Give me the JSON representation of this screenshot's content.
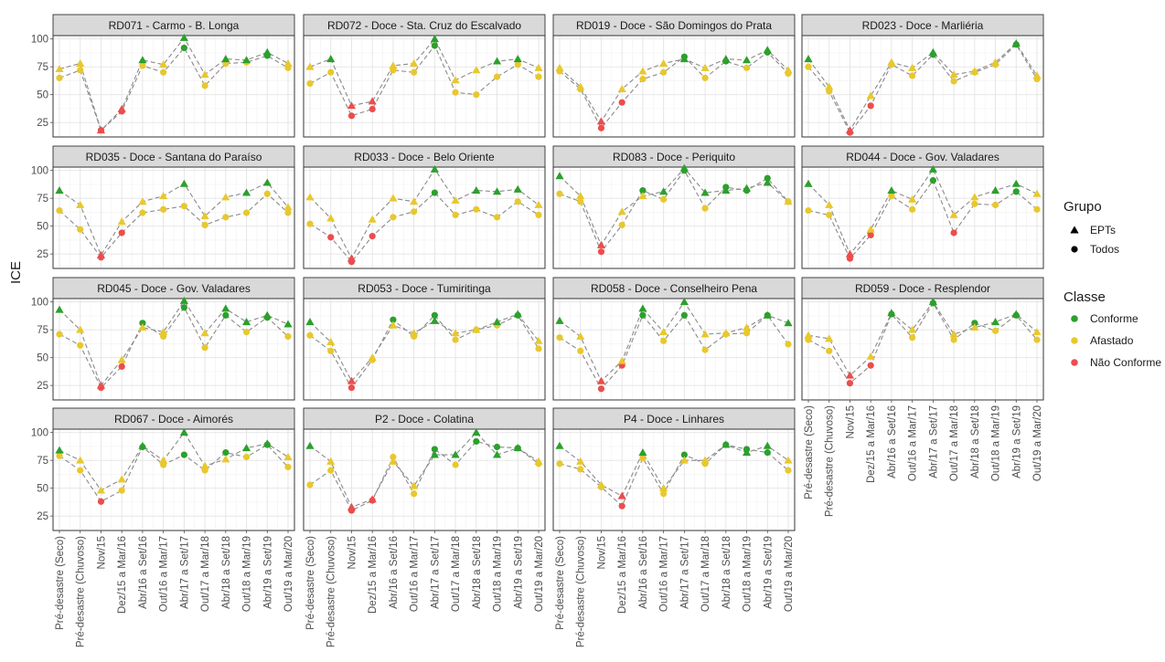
{
  "chart_data": {
    "type": "scatter",
    "ylabel": "ICE",
    "ylim": [
      12,
      103
    ],
    "y_ticks": [
      25,
      50,
      75,
      100
    ],
    "grid": true,
    "categories": [
      "Pré-desastre (Seco)",
      "Pré-desastre (Chuvoso)",
      "Nov/15",
      "Dez/15 a Mar/16",
      "Abr/16 a Set/16",
      "Out/16 a Mar/17",
      "Abr/17 a Set/17",
      "Out/17 a Mar/18",
      "Abr/18 a Set/18",
      "Out/18 a Mar/19",
      "Abr/19 a Set/19",
      "Out/19 a Mar/20"
    ],
    "legend": {
      "placement": "right",
      "grupo_title": "Grupo",
      "grupo_items": [
        {
          "label": "EPTs",
          "shape": "triangle"
        },
        {
          "label": "Todos",
          "shape": "circle"
        }
      ],
      "classe_title": "Classe",
      "classe_items": [
        {
          "label": "Conforme",
          "color": "#2ca02c",
          "min": 80
        },
        {
          "label": "Afastado",
          "color": "#e8c82e",
          "min": 45
        },
        {
          "label": "Não Conforme",
          "color": "#ec4d4d",
          "min": 0
        }
      ]
    },
    "panels": [
      {
        "title": "RD071 - Carmo - B. Longa",
        "epts": [
          73,
          78,
          18,
          37,
          81,
          77,
          101,
          68,
          82,
          81,
          88,
          78
        ],
        "todos": [
          65,
          72,
          18,
          35,
          76,
          70,
          92,
          58,
          78,
          79,
          85,
          74
        ]
      },
      {
        "title": "RD072 - Doce - Sta. Cruz do Escalvado",
        "epts": [
          75,
          82,
          40,
          44,
          76,
          78,
          100,
          63,
          72,
          80,
          82,
          74
        ],
        "todos": [
          60,
          70,
          31,
          37,
          72,
          70,
          94,
          52,
          50,
          66,
          77,
          66
        ]
      },
      {
        "title": "RD019 - Doce - São Domingos do Prata",
        "epts": [
          74,
          57,
          26,
          55,
          71,
          78,
          82,
          74,
          82,
          81,
          90,
          72
        ],
        "todos": [
          71,
          55,
          20,
          43,
          64,
          70,
          84,
          65,
          80,
          74,
          88,
          69
        ]
      },
      {
        "title": "RD023 - Doce - Marliéria",
        "epts": [
          82,
          57,
          18,
          49,
          79,
          74,
          88,
          68,
          71,
          79,
          96,
          67
        ],
        "todos": [
          75,
          53,
          16,
          40,
          77,
          67,
          86,
          62,
          70,
          77,
          95,
          64
        ]
      },
      {
        "title": "RD035 - Doce - Santana do Paraíso",
        "epts": [
          82,
          69,
          24,
          54,
          72,
          77,
          88,
          59,
          76,
          80,
          89,
          67
        ],
        "todos": [
          64,
          47,
          22,
          44,
          62,
          65,
          68,
          51,
          58,
          62,
          79,
          62
        ]
      },
      {
        "title": "RD033 - Doce - Belo Oriente",
        "epts": [
          76,
          57,
          21,
          56,
          75,
          72,
          101,
          73,
          82,
          81,
          83,
          69
        ],
        "todos": [
          52,
          40,
          18,
          41,
          58,
          63,
          80,
          60,
          65,
          58,
          72,
          60
        ]
      },
      {
        "title": "RD083 - Doce - Periquito",
        "epts": [
          95,
          77,
          33,
          63,
          77,
          81,
          102,
          80,
          82,
          84,
          89,
          72
        ],
        "todos": [
          79,
          72,
          27,
          51,
          82,
          74,
          100,
          66,
          85,
          82,
          93,
          72
        ]
      },
      {
        "title": "RD044 - Doce - Gov. Valadares",
        "epts": [
          88,
          69,
          25,
          47,
          82,
          74,
          101,
          60,
          76,
          82,
          88,
          79
        ],
        "todos": [
          64,
          60,
          21,
          42,
          77,
          65,
          91,
          44,
          70,
          69,
          81,
          65
        ]
      },
      {
        "title": "RD045 - Doce - Gov. Valadares",
        "epts": [
          93,
          75,
          25,
          48,
          77,
          73,
          101,
          72,
          94,
          82,
          88,
          80
        ],
        "todos": [
          71,
          61,
          23,
          42,
          81,
          69,
          95,
          59,
          88,
          73,
          86,
          69
        ]
      },
      {
        "title": "RD053 - Doce - Tumiritinga",
        "epts": [
          82,
          64,
          29,
          50,
          79,
          72,
          83,
          72,
          75,
          82,
          89,
          65
        ],
        "todos": [
          70,
          56,
          23,
          48,
          84,
          69,
          88,
          66,
          75,
          79,
          88,
          58
        ]
      },
      {
        "title": "RD058 - Doce - Conselheiro Pena",
        "epts": [
          83,
          69,
          29,
          47,
          94,
          73,
          100,
          71,
          72,
          77,
          88,
          81
        ],
        "todos": [
          68,
          56,
          22,
          43,
          88,
          65,
          88,
          57,
          71,
          72,
          88,
          62
        ]
      },
      {
        "title": "RD059 - Doce - Resplendor",
        "epts": [
          70,
          67,
          34,
          51,
          90,
          75,
          100,
          71,
          77,
          82,
          89,
          73
        ],
        "todos": [
          66,
          56,
          27,
          43,
          89,
          68,
          99,
          66,
          81,
          74,
          88,
          66
        ]
      },
      {
        "title": "RD067 - Doce - Aimorés",
        "epts": [
          84,
          75,
          48,
          58,
          88,
          75,
          100,
          70,
          76,
          86,
          90,
          78
        ],
        "todos": [
          79,
          66,
          38,
          48,
          87,
          71,
          80,
          66,
          82,
          78,
          89,
          69
        ]
      },
      {
        "title": "P2 - Doce - Colatina",
        "epts": [
          88,
          74,
          33,
          40,
          74,
          52,
          80,
          80,
          100,
          80,
          86,
          74
        ],
        "todos": [
          53,
          66,
          30,
          39,
          78,
          45,
          85,
          71,
          92,
          87,
          86,
          72
        ]
      },
      {
        "title": "P4 - Doce - Linhares",
        "epts": [
          88,
          74,
          53,
          43,
          82,
          50,
          75,
          75,
          89,
          82,
          88,
          75
        ],
        "todos": [
          72,
          67,
          51,
          34,
          77,
          45,
          80,
          72,
          89,
          85,
          82,
          66
        ]
      }
    ]
  }
}
